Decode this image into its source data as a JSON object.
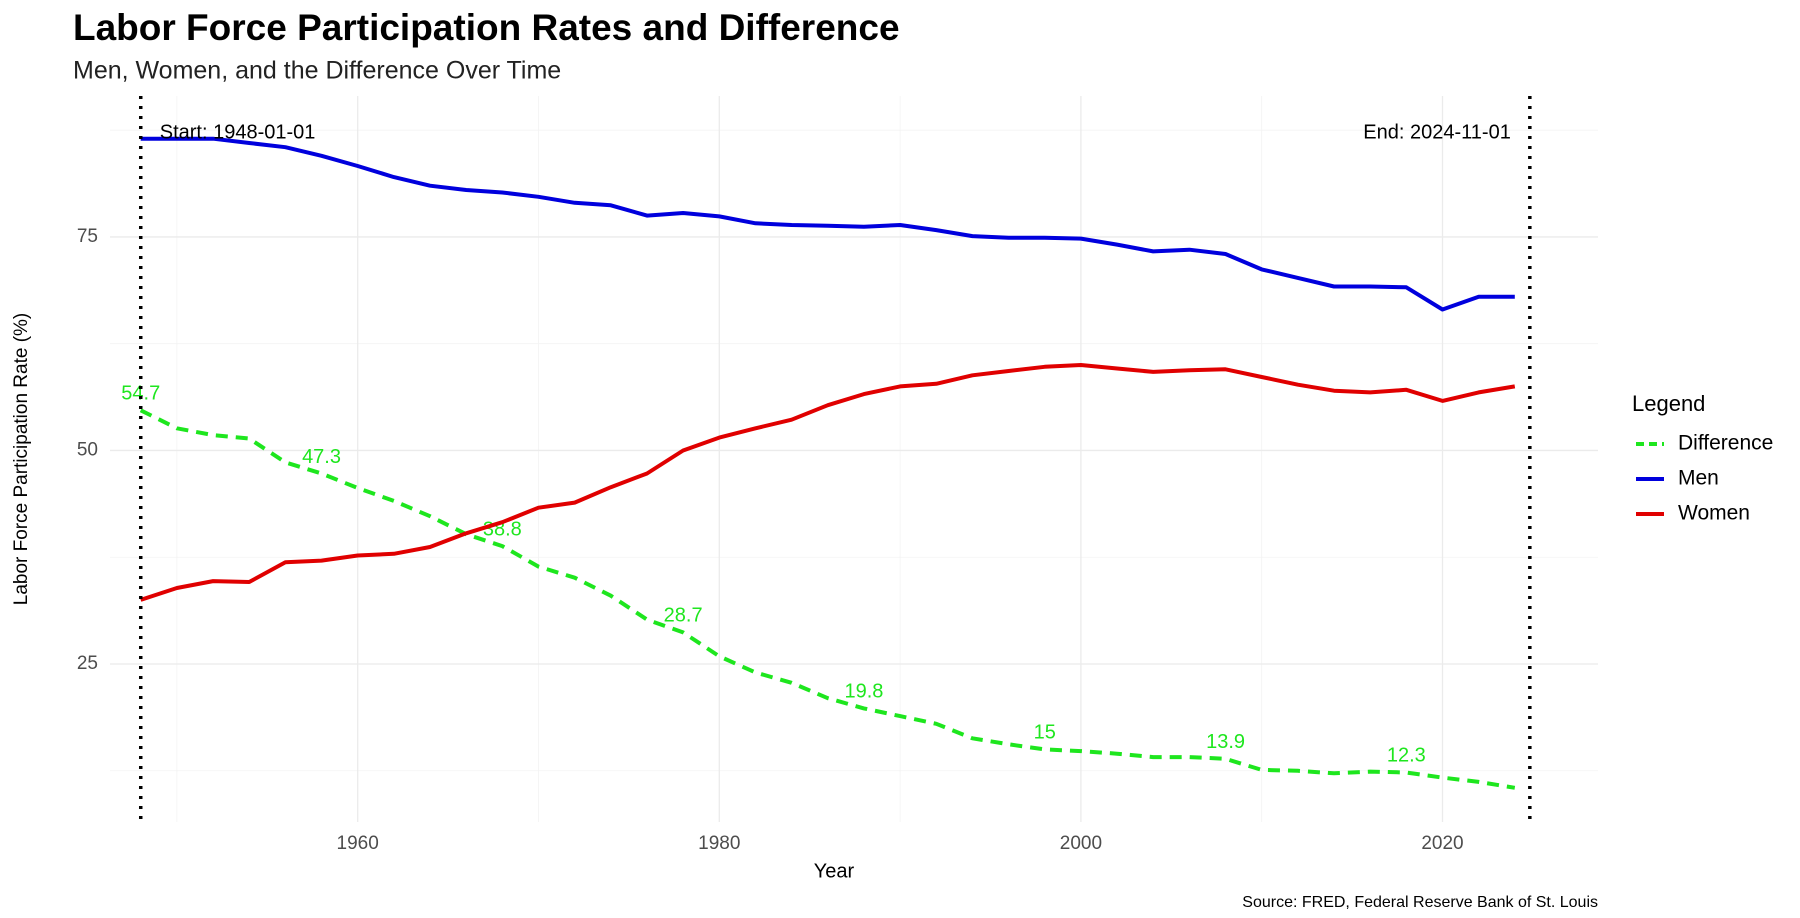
{
  "chart_data": {
    "type": "line",
    "title": "Labor Force Participation Rates and Difference",
    "subtitle": "Men, Women, and the Difference Over Time",
    "x_label": "Year",
    "y_label": "Labor Force Participation Rate (%)",
    "caption": "Source: FRED, Federal Reserve Bank of St. Louis",
    "legend_title": "Legend",
    "legend_position": "right",
    "grid": true,
    "x": [
      1948,
      1950,
      1952,
      1954,
      1956,
      1958,
      1960,
      1962,
      1964,
      1966,
      1968,
      1970,
      1972,
      1974,
      1976,
      1978,
      1980,
      1982,
      1984,
      1986,
      1988,
      1990,
      1992,
      1994,
      1996,
      1998,
      2000,
      2002,
      2004,
      2006,
      2008,
      2010,
      2012,
      2014,
      2016,
      2018,
      2020,
      2022,
      2024
    ],
    "xlim": [
      1946.3,
      2028.6
    ],
    "xticks": [
      1960,
      1980,
      2000,
      2020
    ],
    "x_minor_ticks": [
      1950,
      1970,
      1990,
      2010
    ],
    "ylim": [
      6.5,
      91.5
    ],
    "yticks": [
      25,
      50,
      75
    ],
    "y_minor_ticks": [
      12.5,
      37.5,
      62.5,
      87.5
    ],
    "series": [
      {
        "name": "Difference",
        "color": "#1ee61e",
        "dash": true,
        "values": [
          54.7,
          52.6,
          51.8,
          51.4,
          48.6,
          47.3,
          45.6,
          44.1,
          42.3,
          40.2,
          38.8,
          36.4,
          35.1,
          33.0,
          30.2,
          28.7,
          25.9,
          24.0,
          22.8,
          21.0,
          19.8,
          18.9,
          18.0,
          16.3,
          15.6,
          15,
          14.8,
          14.5,
          14.1,
          14.1,
          13.9,
          12.6,
          12.5,
          12.2,
          12.4,
          12.3,
          11.7,
          11.2,
          10.5
        ],
        "value_labels": [
          "54.7",
          null,
          null,
          null,
          null,
          "47.3",
          null,
          null,
          null,
          null,
          "38.8",
          null,
          null,
          null,
          null,
          "28.7",
          null,
          null,
          null,
          null,
          "19.8",
          null,
          null,
          null,
          null,
          "15",
          null,
          null,
          null,
          null,
          "13.9",
          null,
          null,
          null,
          null,
          "12.3",
          null,
          null,
          null
        ]
      },
      {
        "name": "Men",
        "color": "#0000dd",
        "dash": false,
        "values": [
          86.5,
          86.5,
          86.5,
          86.0,
          85.5,
          84.5,
          83.3,
          82.0,
          81.0,
          80.5,
          80.2,
          79.7,
          79.0,
          78.7,
          77.5,
          77.8,
          77.4,
          76.6,
          76.4,
          76.3,
          76.2,
          76.4,
          75.8,
          75.1,
          74.9,
          74.9,
          74.8,
          74.1,
          73.3,
          73.5,
          73.0,
          71.2,
          70.2,
          69.2,
          69.2,
          69.1,
          66.5,
          68.0,
          68.0
        ]
      },
      {
        "name": "Women",
        "color": "#e00000",
        "dash": false,
        "values": [
          32.5,
          33.9,
          34.7,
          34.6,
          36.9,
          37.1,
          37.7,
          37.9,
          38.7,
          40.3,
          41.6,
          43.3,
          43.9,
          45.7,
          47.3,
          50.0,
          51.5,
          52.6,
          53.6,
          55.3,
          56.6,
          57.5,
          57.8,
          58.8,
          59.3,
          59.8,
          60.0,
          59.6,
          59.2,
          59.4,
          59.5,
          58.6,
          57.7,
          57.0,
          56.8,
          57.1,
          55.8,
          56.8,
          57.5
        ]
      }
    ],
    "annotations": [
      {
        "text": "Start: 1948-01-01",
        "x": 1948
      },
      {
        "text": "End: 2024-11-01",
        "x": 2024.83
      }
    ]
  }
}
